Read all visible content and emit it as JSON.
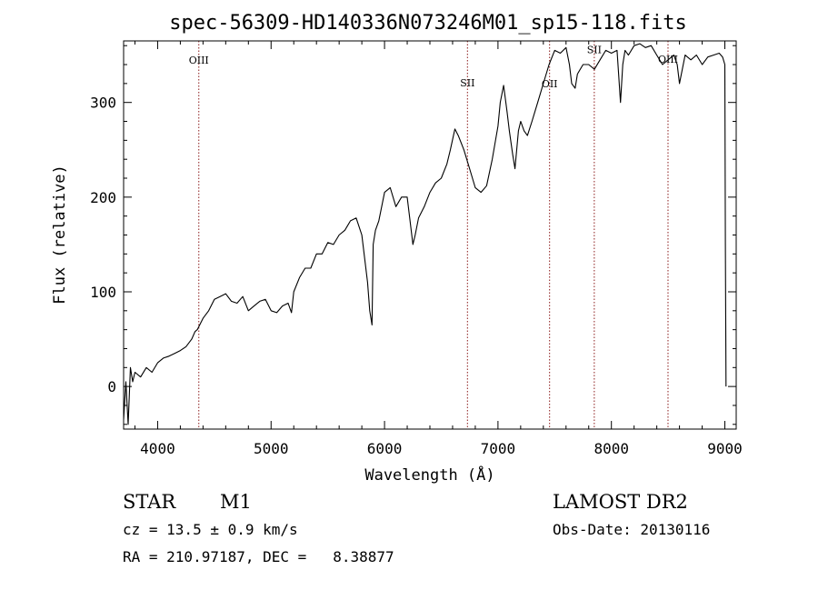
{
  "chart_data": {
    "type": "line",
    "title": "spec-56309-HD140336N073246M01_sp15-118.fits",
    "xlabel": "Wavelength (Å)",
    "ylabel": "Flux (relative)",
    "xlim": [
      3700,
      9100
    ],
    "ylim": [
      -45,
      365
    ],
    "xticks": [
      4000,
      5000,
      6000,
      7000,
      8000,
      9000
    ],
    "yticks": [
      0,
      100,
      200,
      300
    ],
    "grid": false,
    "series": [
      {
        "line_color": "#000000",
        "x": [
          3700,
          3720,
          3740,
          3760,
          3780,
          3800,
          3850,
          3900,
          3950,
          4000,
          4050,
          4100,
          4150,
          4200,
          4250,
          4300,
          4330,
          4350,
          4400,
          4450,
          4500,
          4550,
          4600,
          4650,
          4700,
          4750,
          4800,
          4850,
          4900,
          4950,
          5000,
          5050,
          5100,
          5150,
          5180,
          5200,
          5250,
          5300,
          5350,
          5400,
          5450,
          5500,
          5550,
          5600,
          5650,
          5700,
          5750,
          5800,
          5850,
          5870,
          5890,
          5900,
          5920,
          5950,
          6000,
          6050,
          6100,
          6150,
          6200,
          6250,
          6270,
          6300,
          6350,
          6400,
          6450,
          6500,
          6550,
          6580,
          6620,
          6650,
          6700,
          6750,
          6800,
          6850,
          6900,
          6950,
          7000,
          7020,
          7050,
          7080,
          7100,
          7130,
          7150,
          7180,
          7200,
          7230,
          7260,
          7300,
          7350,
          7400,
          7450,
          7500,
          7550,
          7600,
          7630,
          7650,
          7680,
          7700,
          7750,
          7800,
          7850,
          7900,
          7950,
          8000,
          8050,
          8080,
          8100,
          8120,
          8150,
          8200,
          8250,
          8300,
          8350,
          8400,
          8450,
          8500,
          8550,
          8580,
          8600,
          8650,
          8700,
          8750,
          8800,
          8850,
          8900,
          8950,
          8980,
          9000,
          9005,
          9010
        ],
        "y": [
          -35,
          5,
          -40,
          20,
          5,
          15,
          10,
          20,
          15,
          25,
          30,
          32,
          35,
          38,
          42,
          50,
          58,
          60,
          72,
          80,
          92,
          95,
          98,
          90,
          88,
          95,
          80,
          85,
          90,
          92,
          80,
          78,
          85,
          88,
          78,
          100,
          115,
          125,
          125,
          140,
          140,
          152,
          150,
          160,
          165,
          175,
          178,
          160,
          110,
          80,
          65,
          150,
          165,
          175,
          205,
          210,
          190,
          200,
          200,
          150,
          160,
          178,
          190,
          205,
          215,
          220,
          235,
          250,
          272,
          265,
          250,
          230,
          210,
          205,
          212,
          240,
          275,
          300,
          318,
          290,
          270,
          245,
          230,
          270,
          280,
          270,
          265,
          280,
          300,
          320,
          340,
          355,
          352,
          358,
          340,
          320,
          315,
          330,
          340,
          340,
          335,
          345,
          355,
          352,
          355,
          300,
          340,
          355,
          350,
          360,
          362,
          358,
          360,
          350,
          340,
          345,
          350,
          340,
          320,
          350,
          345,
          350,
          340,
          348,
          350,
          352,
          348,
          340,
          150,
          0
        ]
      }
    ],
    "annotation_lines": [
      {
        "label": "OIII",
        "x": 4363,
        "label_y": 341
      },
      {
        "label": "SII",
        "x": 6731,
        "label_y": 317
      },
      {
        "label": "OII",
        "x": 7455,
        "label_y": 316
      },
      {
        "label": "SII",
        "x": 7849,
        "label_y": 352
      },
      {
        "label": "OIII",
        "x": 8499,
        "label_y": 342
      }
    ],
    "annotation_line_color": "#8b1a1a",
    "info": {
      "object_class": "STAR",
      "subclass": "M1",
      "survey": "LAMOST DR2",
      "cz": "cz = 13.5 ± 0.9 km/s",
      "obs_date": "Obs-Date: 20130116",
      "coords": "RA = 210.97187, DEC =   8.38877"
    }
  }
}
